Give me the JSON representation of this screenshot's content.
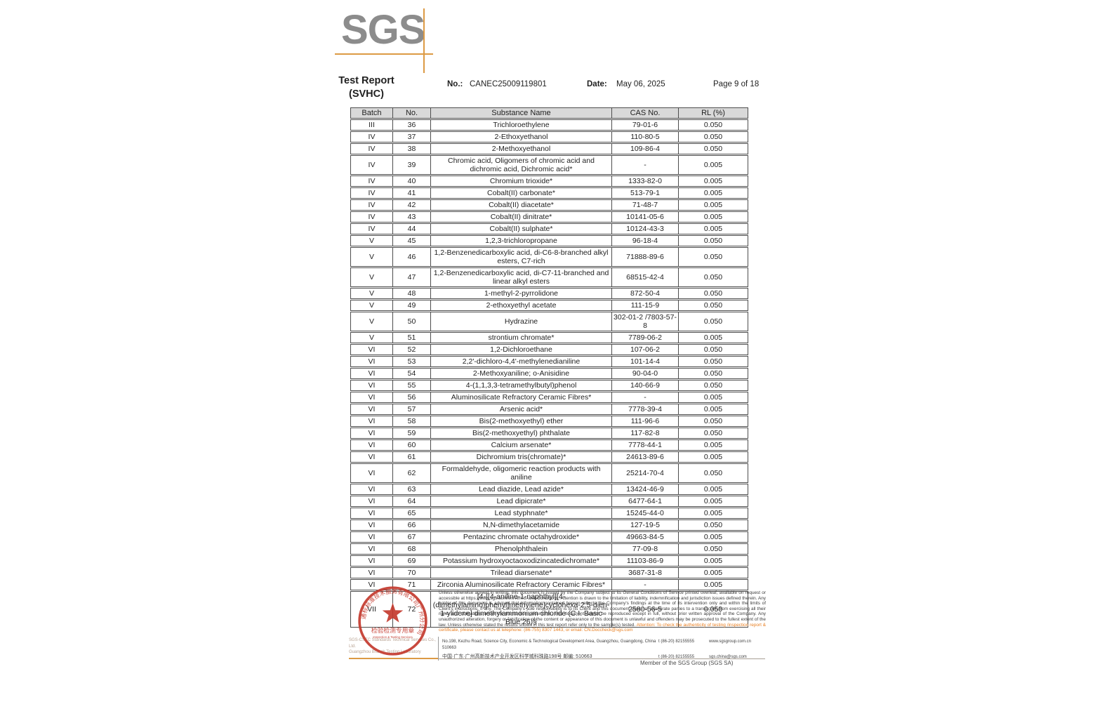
{
  "logo": {
    "text": "SGS"
  },
  "colors": {
    "logo_gray": "#8c8c8c",
    "accent_orange": "#dc9a44",
    "stamp_red": "#c43a2e",
    "attention_orange": "#e87d1e",
    "table_header_bg": "#d9d9d9"
  },
  "header": {
    "title_line1": "Test Report",
    "title_line2": "(SVHC)",
    "no_label": "No.:",
    "no_value": "CANEC25009119801",
    "date_label": "Date:",
    "date_value": "May 06, 2025",
    "page_label": "Page 9 of 18"
  },
  "table": {
    "headers": [
      "Batch",
      "No.",
      "Substance Name",
      "CAS No.",
      "RL (%)"
    ],
    "rows": [
      [
        "III",
        "36",
        "Trichloroethylene",
        "79-01-6",
        "0.050"
      ],
      [
        "IV",
        "37",
        "2-Ethoxyethanol",
        "110-80-5",
        "0.050"
      ],
      [
        "IV",
        "38",
        "2-Methoxyethanol",
        "109-86-4",
        "0.050"
      ],
      [
        "IV",
        "39",
        "Chromic acid, Oligomers of chromic acid and dichromic acid, Dichromic acid*",
        "-",
        "0.005"
      ],
      [
        "IV",
        "40",
        "Chromium trioxide*",
        "1333-82-0",
        "0.005"
      ],
      [
        "IV",
        "41",
        "Cobalt(II) carbonate*",
        "513-79-1",
        "0.005"
      ],
      [
        "IV",
        "42",
        "Cobalt(II) diacetate*",
        "71-48-7",
        "0.005"
      ],
      [
        "IV",
        "43",
        "Cobalt(II) dinitrate*",
        "10141-05-6",
        "0.005"
      ],
      [
        "IV",
        "44",
        "Cobalt(II) sulphate*",
        "10124-43-3",
        "0.005"
      ],
      [
        "V",
        "45",
        "1,2,3-trichloropropane",
        "96-18-4",
        "0.050"
      ],
      [
        "V",
        "46",
        "1,2-Benzenedicarboxylic acid, di-C6-8-branched alkyl esters, C7-rich",
        "71888-89-6",
        "0.050"
      ],
      [
        "V",
        "47",
        "1,2-Benzenedicarboxylic acid, di-C7-11-branched and linear alkyl esters",
        "68515-42-4",
        "0.050"
      ],
      [
        "V",
        "48",
        "1-methyl-2-pyrrolidone",
        "872-50-4",
        "0.050"
      ],
      [
        "V",
        "49",
        "2-ethoxyethyl acetate",
        "111-15-9",
        "0.050"
      ],
      [
        "V",
        "50",
        "Hydrazine",
        "302-01-2 /7803-57-8",
        "0.050"
      ],
      [
        "V",
        "51",
        "strontium chromate*",
        "7789-06-2",
        "0.005"
      ],
      [
        "VI",
        "52",
        "1,2-Dichloroethane",
        "107-06-2",
        "0.050"
      ],
      [
        "VI",
        "53",
        "2,2'-dichloro-4,4'-methylenedianiline",
        "101-14-4",
        "0.050"
      ],
      [
        "VI",
        "54",
        "2-Methoxyaniline; o-Anisidine",
        "90-04-0",
        "0.050"
      ],
      [
        "VI",
        "55",
        "4-(1,1,3,3-tetramethylbutyl)phenol",
        "140-66-9",
        "0.050"
      ],
      [
        "VI",
        "56",
        "Aluminosilicate Refractory Ceramic Fibres*",
        "-",
        "0.005"
      ],
      [
        "VI",
        "57",
        "Arsenic acid*",
        "7778-39-4",
        "0.005"
      ],
      [
        "VI",
        "58",
        "Bis(2-methoxyethyl) ether",
        "111-96-6",
        "0.050"
      ],
      [
        "VI",
        "59",
        "Bis(2-methoxyethyl) phthalate",
        "117-82-8",
        "0.050"
      ],
      [
        "VI",
        "60",
        "Calcium arsenate*",
        "7778-44-1",
        "0.005"
      ],
      [
        "VI",
        "61",
        "Dichromium tris(chromate)*",
        "24613-89-6",
        "0.005"
      ],
      [
        "VI",
        "62",
        "Formaldehyde, oligomeric reaction products with aniline",
        "25214-70-4",
        "0.050"
      ],
      [
        "VI",
        "63",
        "Lead diazide, Lead azide*",
        "13424-46-9",
        "0.005"
      ],
      [
        "VI",
        "64",
        "Lead dipicrate*",
        "6477-64-1",
        "0.005"
      ],
      [
        "VI",
        "65",
        "Lead styphnate*",
        "15245-44-0",
        "0.005"
      ],
      [
        "VI",
        "66",
        "N,N-dimethylacetamide",
        "127-19-5",
        "0.050"
      ],
      [
        "VI",
        "67",
        "Pentazinc chromate octahydroxide*",
        "49663-84-5",
        "0.005"
      ],
      [
        "VI",
        "68",
        "Phenolphthalein",
        "77-09-8",
        "0.050"
      ],
      [
        "VI",
        "69",
        "Potassium hydroxyoctaoxodizincatedichromate*",
        "11103-86-9",
        "0.005"
      ],
      [
        "VI",
        "70",
        "Trilead diarsenate*",
        "3687-31-8",
        "0.005"
      ],
      [
        "VI",
        "71",
        "Zirconia Aluminosilicate Refractory Ceramic Fibres*",
        "-",
        "0.005"
      ],
      [
        "VII",
        "72",
        "[4-[[4-anilino-1-naphthyl][4-(dimethylamino)phenyl]methylene]cyclohexa-2,5-dien-1-ylidene] dimethylammonium chloride (C.I. Basic Blue 26)§",
        "2580-56-5",
        "0.050"
      ]
    ]
  },
  "footer": {
    "disclaimer": "Unless otherwise agreed in writing, this document is issued by the Company subject to its General Conditions of Service printed overleaf, available on request or accessible at https://www.sgs.com/en/Terms-and-Conditions. Attention is drawn to the limitation of liability, indemnification and jurisdiction issues defined therein. Any holder of this document is advised that information contained hereon reflects the Company's findings at the time of its intervention only and within the limits of Client's instructions, if any. The Company's sole responsibility is to its Client and this document does not exonerate parties to a transaction from exercising all their rights and obligations under the transaction documents. This document cannot be reproduced except in full, without prior written approval of the Company. Any unauthorized alteration, forgery or falsification of the content or appearance of this document is unlawful and offenders may be prosecuted to the fullest extent of the law. Unless otherwise stated the results shown in this test report refer only to the sample(s) tested. ",
    "attention": "Attention: To check the authenticity of testing /inspection report & certificate, please contact us at telephone: (86-755) 8307 1443, or email: CN.Doccheck@sgs.com",
    "company_line1": "SGS-CSTC Standards Technical Services Co., Ltd.",
    "company_line2": "Guangzhou Branch Testing Laboratory",
    "address_en": "No.198, Kezhu Road, Science City, Economic & Technological Development Area, Guangzhou, Guangdong, China 510663",
    "address_cn": "中国·广东·广州高新技术产业开发区科学城科珠路198号  邮编: 510663",
    "tel1": "t (86-20) 82155555",
    "tel2": "t (86-20) 82155555",
    "web": "www.sgsgroup.com.cn",
    "email": "sgs.china@sgs.com",
    "member": "Member of the SGS Group (SGS SA)",
    "stamp": {
      "ring_text": "通标标准技术服务有限公司广州分公司",
      "inner_cn": "检验检测专用章",
      "inner_en": "Inspection & Testing Services"
    }
  }
}
